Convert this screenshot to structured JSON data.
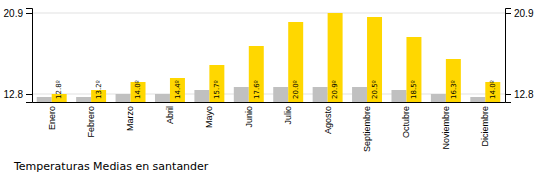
{
  "chart_data": {
    "type": "bar",
    "title": "Temperaturas Medias en santander",
    "categories": [
      "Enero",
      "Febrero",
      "Marzo",
      "Abril",
      "Mayo",
      "Junio",
      "Julio",
      "Agosto",
      "Septiembre",
      "Octubre",
      "Noviembre",
      "Diciembre"
    ],
    "series": [
      {
        "color": "#C0C0C0",
        "values": [
          12.5,
          12.5,
          12.8,
          12.8,
          13.2,
          13.5,
          13.5,
          13.5,
          13.5,
          13.2,
          12.8,
          12.5
        ]
      },
      {
        "color": "#FFD700",
        "values": [
          12.8,
          13.2,
          14.0,
          14.4,
          15.7,
          17.6,
          20.0,
          20.9,
          20.5,
          18.5,
          16.3,
          14.0
        ],
        "data_labels": true,
        "value_labels": [
          "12.8º",
          "13.2º",
          "14.0º",
          "14.4º",
          "15.7º",
          "17.6º",
          "20.0º",
          "20.9º",
          "20.5º",
          "18.5º",
          "16.3º",
          "14.0º"
        ]
      }
    ],
    "ylim": [
      12.0,
      21.4
    ],
    "yticks": [
      12.8,
      20.9
    ],
    "y2lim": [
      12.0,
      21.4
    ],
    "y2ticks": [
      12.8,
      20.9
    ],
    "grid": true
  }
}
